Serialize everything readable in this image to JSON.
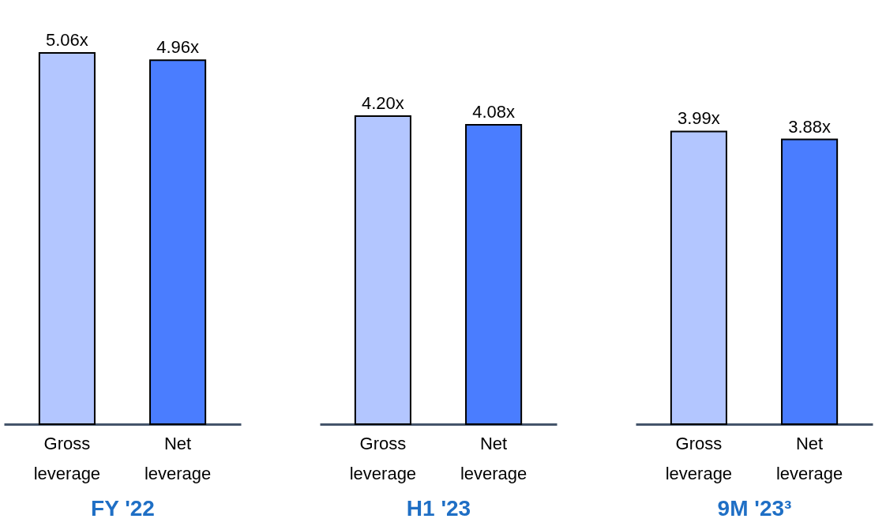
{
  "chart_data": [
    {
      "type": "bar",
      "xlabel": "FY '22",
      "categories": [
        "Gross leverage",
        "Net leverage"
      ],
      "values": [
        5.06,
        4.96
      ],
      "value_labels": [
        "5.06x",
        "4.96x"
      ],
      "colors": [
        "#b3c6ff",
        "#4a7dff"
      ]
    },
    {
      "type": "bar",
      "xlabel": "H1 '23",
      "categories": [
        "Gross leverage",
        "Net leverage"
      ],
      "values": [
        4.2,
        4.08
      ],
      "value_labels": [
        "4.20x",
        "4.08x"
      ],
      "colors": [
        "#b3c6ff",
        "#4a7dff"
      ]
    },
    {
      "type": "bar",
      "xlabel": "9M '23³",
      "categories": [
        "Gross leverage",
        "Net leverage"
      ],
      "values": [
        3.99,
        3.88
      ],
      "value_labels": [
        "3.99x",
        "3.88x"
      ],
      "colors": [
        "#b3c6ff",
        "#4a7dff"
      ]
    }
  ]
}
